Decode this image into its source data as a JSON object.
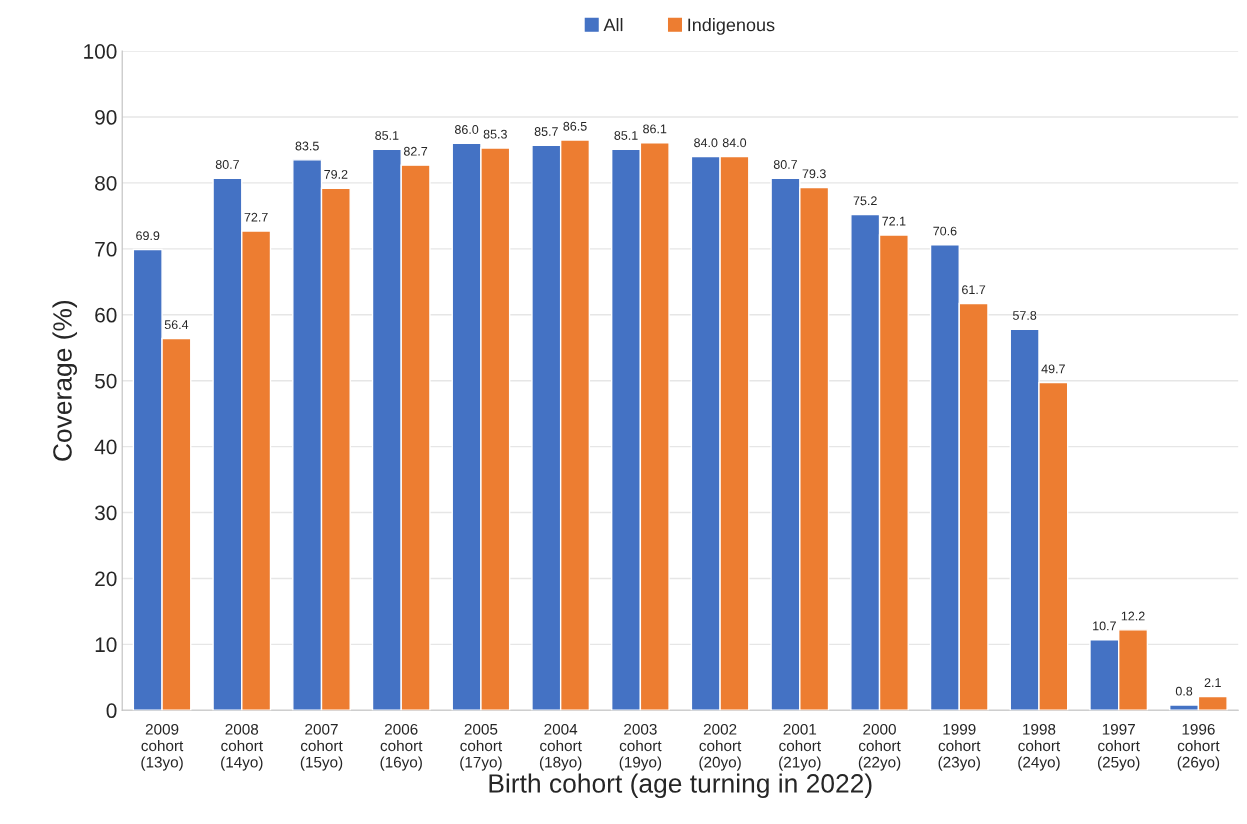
{
  "chart_data": {
    "type": "bar",
    "xlabel": "Birth cohort (age turning in 2022)",
    "ylabel": "Coverage (%)",
    "categories": [
      "2009\ncohort\n(13yo)",
      "2008\ncohort\n(14yo)",
      "2007\ncohort\n(15yo)",
      "2006\ncohort\n(16yo)",
      "2005\ncohort\n(17yo)",
      "2004\ncohort\n(18yo)",
      "2003\ncohort\n(19yo)",
      "2002\ncohort\n(20yo)",
      "2001\ncohort\n(21yo)",
      "2000\ncohort\n(22yo)",
      "1999\ncohort\n(23yo)",
      "1998\ncohort\n(24yo)",
      "1997\ncohort\n(25yo)",
      "1996\ncohort\n(26yo)"
    ],
    "series": [
      {
        "name": "All",
        "color": "#4472c4",
        "values": [
          69.9,
          80.7,
          83.5,
          85.1,
          86.0,
          85.7,
          85.1,
          84.0,
          80.7,
          75.2,
          70.6,
          57.8,
          10.7,
          0.8
        ],
        "value_labels": [
          "69.9",
          "80.7",
          "83.5",
          "85.1",
          "86.0",
          "85.7",
          "85.1",
          "84.0",
          "80.7",
          "75.2",
          "70.6",
          "57.8",
          "10.7",
          "0.8"
        ]
      },
      {
        "name": "Indigenous",
        "color": "#ed7d31",
        "values": [
          56.4,
          72.7,
          79.2,
          82.7,
          85.3,
          86.5,
          86.1,
          84.0,
          79.3,
          72.1,
          61.7,
          49.7,
          12.2,
          2.1
        ],
        "value_labels": [
          "56.4",
          "72.7",
          "79.2",
          "82.7",
          "85.3",
          "86.5",
          "86.1",
          "84.0",
          "79.3",
          "72.1",
          "61.7",
          "49.7",
          "12.2",
          "2.1"
        ]
      }
    ],
    "ylim": [
      0,
      100
    ],
    "yticks": [
      0,
      10,
      20,
      30,
      40,
      50,
      60,
      70,
      80,
      90,
      100
    ],
    "grid": "y",
    "legend": "top"
  }
}
